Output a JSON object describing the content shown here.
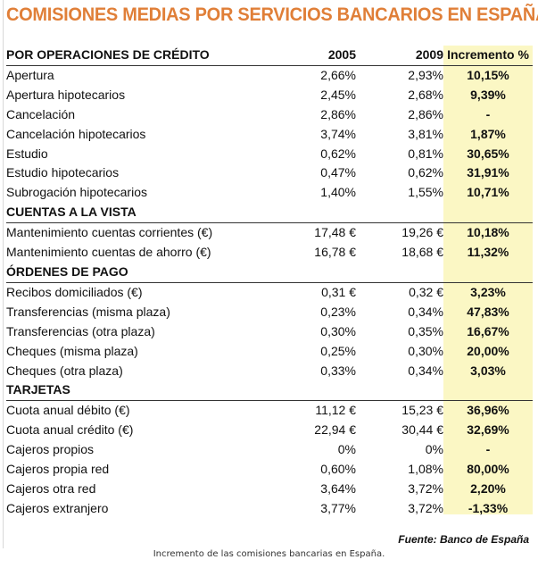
{
  "title": "COMISIONES MEDIAS POR SERVICIOS BANCARIOS EN ESPAÑA",
  "columns": [
    "2005",
    "2009",
    "Incremento %"
  ],
  "colors": {
    "title": "#e07f38",
    "highlight_column": "#fbf7c4"
  },
  "sections": [
    {
      "name": "POR OPERACIONES DE CRÉDITO",
      "rows": [
        [
          "Apertura",
          "2,66%",
          "2,93%",
          "10,15%"
        ],
        [
          "Apertura hipotecarios",
          "2,45%",
          "2,68%",
          "9,39%"
        ],
        [
          "Cancelación",
          "2,86%",
          "2,86%",
          "-"
        ],
        [
          "Cancelación hipotecarios",
          "3,74%",
          "3,81%",
          "1,87%"
        ],
        [
          "Estudio",
          "0,62%",
          "0,81%",
          "30,65%"
        ],
        [
          "Estudio hipotecarios",
          "0,47%",
          "0,62%",
          "31,91%"
        ],
        [
          "Subrogación hipotecarios",
          "1,40%",
          "1,55%",
          "10,71%"
        ]
      ]
    },
    {
      "name": "CUENTAS A LA VISTA",
      "rows": [
        [
          "Mantenimiento cuentas corrientes (€)",
          "17,48 €",
          "19,26 €",
          "10,18%"
        ],
        [
          "Mantenimiento cuentas de ahorro (€)",
          "16,78 €",
          "18,68 €",
          "11,32%"
        ]
      ]
    },
    {
      "name": "ÓRDENES DE PAGO",
      "rows": [
        [
          "Recibos domiciliados (€)",
          "0,31 €",
          "0,32 €",
          "3,23%"
        ],
        [
          "Transferencias (misma plaza)",
          "0,23%",
          "0,34%",
          "47,83%"
        ],
        [
          "Transferencias (otra plaza)",
          "0,30%",
          "0,35%",
          "16,67%"
        ],
        [
          "Cheques (misma plaza)",
          "0,25%",
          "0,30%",
          "20,00%"
        ],
        [
          "Cheques (otra plaza)",
          "0,33%",
          "0,34%",
          "3,03%"
        ]
      ]
    },
    {
      "name": "TARJETAS",
      "rows": [
        [
          "Cuota anual débito (€)",
          "11,12 €",
          "15,23 €",
          "36,96%"
        ],
        [
          "Cuota anual crédito (€)",
          "22,94 €",
          "30,44 €",
          "32,69%"
        ],
        [
          "Cajeros propios",
          "0%",
          "0%",
          "-"
        ],
        [
          "Cajeros propia red",
          "0,60%",
          "1,08%",
          "80,00%"
        ],
        [
          "Cajeros otra red",
          "3,64%",
          "3,72%",
          "2,20%"
        ],
        [
          "Cajeros extranjero",
          "3,77%",
          "3,72%",
          "-1,33%"
        ]
      ]
    }
  ],
  "source": "Fuente: Banco de España",
  "caption": "Incremento de las comisiones bancarias en España."
}
